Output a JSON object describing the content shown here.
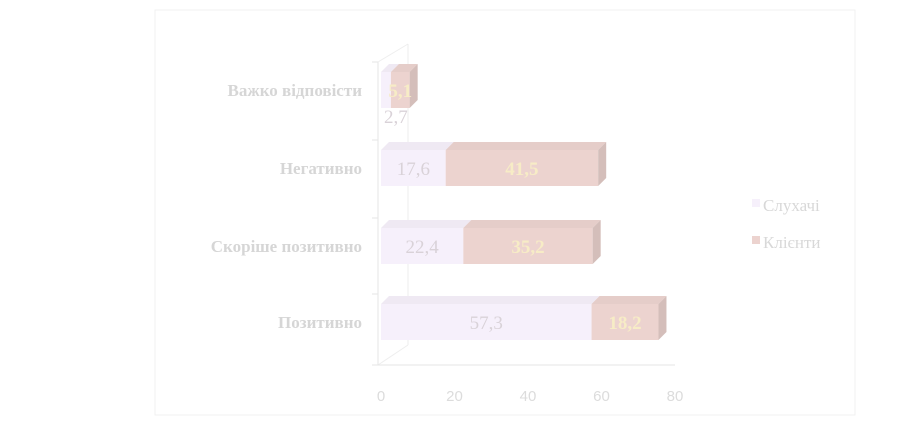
{
  "chart_data": {
    "type": "bar",
    "orientation": "horizontal",
    "stacked": true,
    "categories": [
      "Позитивно",
      "Скоріше позитивно",
      "Негативно",
      "Важко відповісти"
    ],
    "series": [
      {
        "name": "Слухачі",
        "values": [
          57.3,
          22.4,
          17.6,
          2.7
        ],
        "labels": [
          "57,3",
          "22,4",
          "17,6",
          "2,7"
        ],
        "color": "#f6f0fb"
      },
      {
        "name": "Клієнти",
        "values": [
          18.2,
          35.2,
          41.5,
          5.1
        ],
        "labels": [
          "18,2",
          "35,2",
          "41,5",
          "5,1"
        ],
        "color": "#ecd3cf"
      }
    ],
    "x_ticks": [
      "0",
      "20",
      "40",
      "60",
      "80"
    ],
    "xlim": [
      0,
      80
    ],
    "legend_position": "right",
    "grid": false
  }
}
